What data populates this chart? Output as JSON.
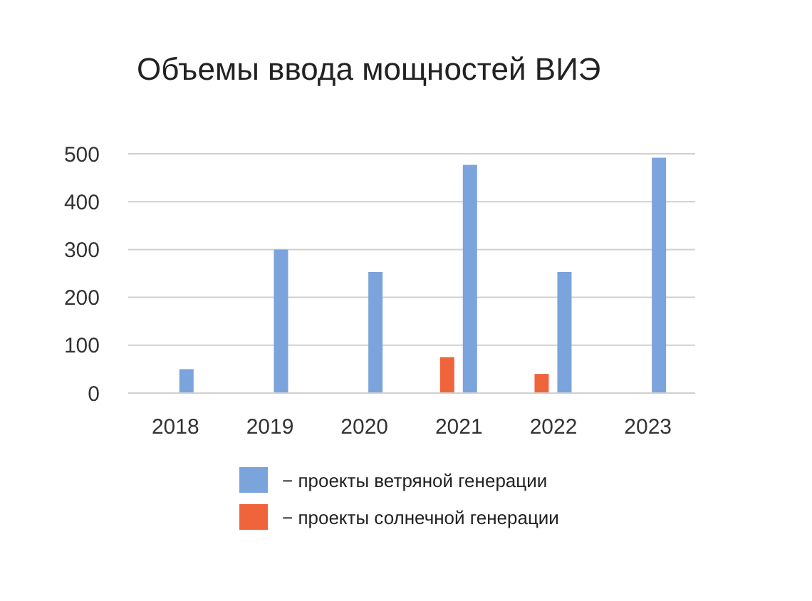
{
  "chart_data": {
    "type": "bar",
    "title": "Объемы ввода мощностей ВИЭ",
    "categories": [
      "2018",
      "2019",
      "2020",
      "2021",
      "2022",
      "2023"
    ],
    "series": [
      {
        "name": "− проекты ветряной генерации",
        "color": "#7ba3dc",
        "values": [
          50,
          300,
          253,
          477,
          253,
          492
        ]
      },
      {
        "name": "− проекты солнечной генерации",
        "color": "#f0643c",
        "values": [
          null,
          null,
          null,
          75,
          40,
          null
        ]
      }
    ],
    "ylim": [
      0,
      500
    ],
    "yticks": [
      0,
      100,
      200,
      300,
      400,
      500
    ],
    "grid": "y",
    "legend": "bottom"
  }
}
